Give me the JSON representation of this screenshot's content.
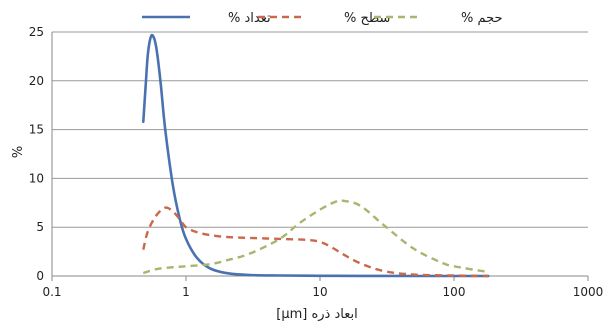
{
  "chart_data": {
    "type": "line",
    "title": "",
    "xlabel": "ابعاد ذره [µm]",
    "ylabel": "%",
    "xscale": "log",
    "xlim": [
      0.1,
      1000
    ],
    "ylim": [
      0,
      25
    ],
    "xticks": [
      0.1,
      1,
      10,
      100,
      1000
    ],
    "xtick_labels": [
      "0.1",
      "1",
      "10",
      "100",
      "1000"
    ],
    "yticks": [
      0,
      5,
      10,
      15,
      20,
      25
    ],
    "ytick_labels": [
      "0",
      "5",
      "10",
      "15",
      "20",
      "25"
    ],
    "grid": {
      "y": true,
      "x": false
    },
    "legend": {
      "placement": "top-center"
    },
    "series": [
      {
        "name": "تعداد %",
        "style": "solid",
        "color": "#4a72b0",
        "x": [
          0.48,
          0.5,
          0.52,
          0.55,
          0.58,
          0.6,
          0.62,
          0.65,
          0.7,
          0.8,
          0.9,
          1.0,
          1.2,
          1.5,
          2.0,
          3.0,
          5.0,
          10,
          20,
          50,
          100,
          180
        ],
        "y": [
          15.8,
          19.5,
          22.8,
          24.6,
          24.3,
          23.4,
          22.0,
          19.5,
          15.0,
          9.2,
          5.8,
          3.8,
          1.9,
          0.8,
          0.3,
          0.1,
          0.05,
          0.02,
          0.01,
          0,
          0,
          0
        ]
      },
      {
        "name": "سطح %",
        "style": "dashed",
        "color": "#c9694a",
        "x": [
          0.48,
          0.52,
          0.6,
          0.7,
          0.8,
          0.9,
          1.0,
          1.2,
          1.5,
          2.0,
          3.0,
          5.0,
          8.0,
          10,
          12,
          15,
          20,
          30,
          50,
          100,
          180
        ],
        "y": [
          2.7,
          4.6,
          6.2,
          7.0,
          6.6,
          5.8,
          5.0,
          4.5,
          4.2,
          4.0,
          3.9,
          3.8,
          3.7,
          3.5,
          3.0,
          2.2,
          1.3,
          0.5,
          0.15,
          0.05,
          0
        ]
      },
      {
        "name": "حجم %",
        "style": "dashed",
        "color": "#a8b56e",
        "x": [
          0.48,
          0.6,
          0.8,
          1.0,
          1.5,
          2.0,
          3.0,
          5.0,
          7.0,
          10,
          13,
          15,
          20,
          30,
          50,
          80,
          100,
          180
        ],
        "y": [
          0.3,
          0.7,
          0.9,
          1.0,
          1.2,
          1.6,
          2.3,
          3.8,
          5.4,
          6.8,
          7.6,
          7.7,
          7.2,
          5.2,
          2.8,
          1.4,
          1.0,
          0.4
        ]
      }
    ]
  }
}
